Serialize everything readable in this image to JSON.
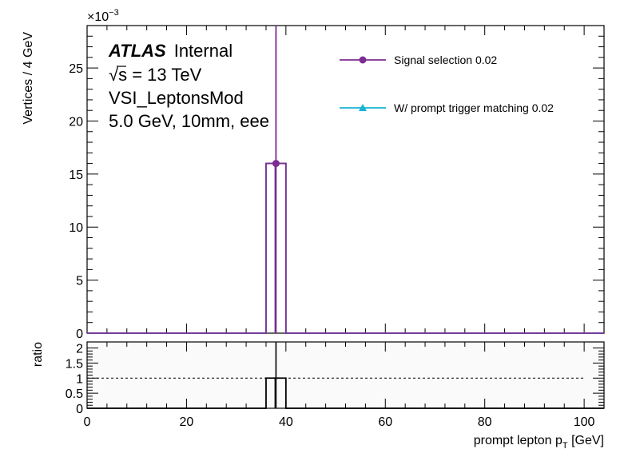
{
  "chart_data": [
    {
      "type": "histogram",
      "panel": "main",
      "ylabel": "Vertices / 4 GeV",
      "y_multiplier": "×10",
      "y_multiplier_exp": "−3",
      "ylim": [
        0,
        29
      ],
      "yticks": [
        0,
        5,
        10,
        15,
        20,
        25
      ],
      "xlim": [
        0,
        104
      ],
      "xticks": [
        0,
        20,
        40,
        60,
        80,
        100
      ],
      "bin_width": 4,
      "annotations": {
        "atlas": "ATLAS",
        "internal": "Internal",
        "sqrt": "√",
        "energy": "s = 13 TeV",
        "selection": "VSI_LeptonsMod",
        "sample": "5.0 GeV, 10mm, eee"
      },
      "legend_placement": "top-right",
      "series": [
        {
          "name": "Signal selection 0.02",
          "color": "#7b2d91",
          "marker": "circle",
          "bins": [
            {
              "x_low": 36,
              "x_high": 40,
              "value": 16
            }
          ],
          "point": {
            "x": 38,
            "y": 16
          }
        },
        {
          "name": "W/ prompt trigger matching 0.02",
          "color": "#17b3d3",
          "marker": "triangle",
          "bins": [
            {
              "x_low": 36,
              "x_high": 40,
              "value": 16
            }
          ],
          "point": {
            "x": 38,
            "y": 16
          }
        }
      ]
    },
    {
      "type": "histogram",
      "panel": "ratio",
      "ylabel": "ratio",
      "ylim": [
        0,
        2.2
      ],
      "yticks": [
        0,
        0.5,
        1,
        1.5,
        2
      ],
      "ytick_labels": [
        "0",
        "0.5",
        "1",
        "1.5",
        "2"
      ],
      "xlim": [
        0,
        104
      ],
      "xticks": [
        0,
        20,
        40,
        60,
        80,
        100
      ],
      "xlabel": "prompt lepton p",
      "xlabel_sub": "T",
      "xlabel_unit": " [GeV]",
      "reference_line": 1,
      "bins": [
        {
          "x_low": 36,
          "x_high": 40,
          "value": 1
        }
      ],
      "point": {
        "x": 38,
        "y": 1
      }
    }
  ]
}
